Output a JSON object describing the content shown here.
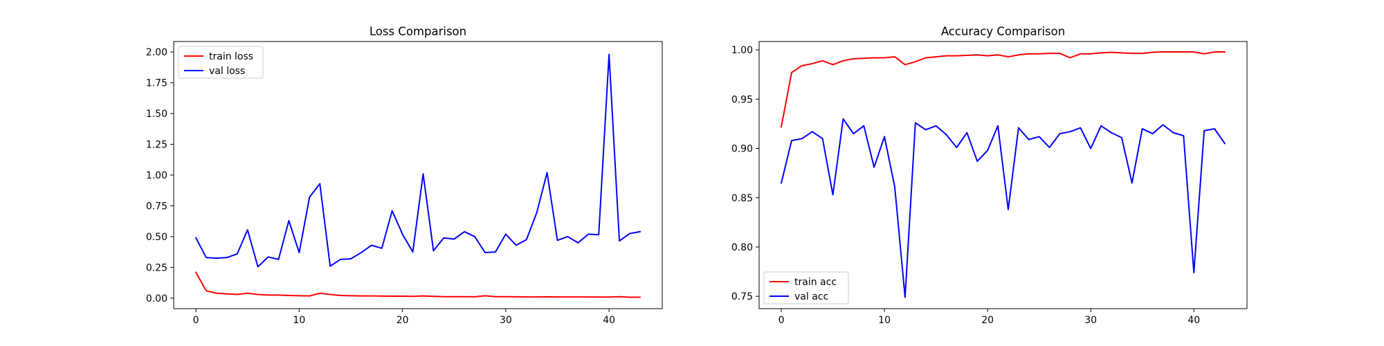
{
  "chart_data": [
    {
      "type": "line",
      "title": "Loss Comparison",
      "xlabel": "",
      "ylabel": "",
      "xlim": [
        -2.15,
        45.15
      ],
      "ylim": [
        -0.085,
        2.085
      ],
      "xticks": [
        0,
        10,
        20,
        30,
        40
      ],
      "yticks": [
        0.0,
        0.25,
        0.5,
        0.75,
        1.0,
        1.25,
        1.5,
        1.75,
        2.0
      ],
      "ytick_labels": [
        "0.00",
        "0.25",
        "0.50",
        "0.75",
        "1.00",
        "1.25",
        "1.50",
        "1.75",
        "2.00"
      ],
      "legend_loc": "upper left",
      "grid": false,
      "series": [
        {
          "name": "train loss",
          "color": "#ff0000",
          "x": [
            0,
            1,
            2,
            3,
            4,
            5,
            6,
            7,
            8,
            9,
            10,
            11,
            12,
            13,
            14,
            15,
            16,
            17,
            18,
            19,
            20,
            21,
            22,
            23,
            24,
            25,
            26,
            27,
            28,
            29,
            30,
            31,
            32,
            33,
            34,
            35,
            36,
            37,
            38,
            39,
            40,
            41,
            42,
            43
          ],
          "y": [
            0.21,
            0.06,
            0.04,
            0.035,
            0.03,
            0.04,
            0.03,
            0.025,
            0.025,
            0.022,
            0.02,
            0.018,
            0.04,
            0.03,
            0.022,
            0.02,
            0.018,
            0.018,
            0.017,
            0.016,
            0.016,
            0.015,
            0.018,
            0.015,
            0.012,
            0.012,
            0.012,
            0.011,
            0.02,
            0.012,
            0.012,
            0.011,
            0.01,
            0.01,
            0.011,
            0.01,
            0.01,
            0.01,
            0.01,
            0.009,
            0.009,
            0.012,
            0.008,
            0.008
          ]
        },
        {
          "name": "val loss",
          "color": "#0000ff",
          "x": [
            0,
            1,
            2,
            3,
            4,
            5,
            6,
            7,
            8,
            9,
            10,
            11,
            12,
            13,
            14,
            15,
            16,
            17,
            18,
            19,
            20,
            21,
            22,
            23,
            24,
            25,
            26,
            27,
            28,
            29,
            30,
            31,
            32,
            33,
            34,
            35,
            36,
            37,
            38,
            39,
            40,
            41,
            42,
            43
          ],
          "y": [
            0.49,
            0.33,
            0.325,
            0.33,
            0.36,
            0.555,
            0.255,
            0.335,
            0.315,
            0.63,
            0.37,
            0.82,
            0.93,
            0.26,
            0.315,
            0.32,
            0.37,
            0.43,
            0.405,
            0.71,
            0.52,
            0.375,
            1.01,
            0.385,
            0.49,
            0.48,
            0.54,
            0.5,
            0.37,
            0.375,
            0.52,
            0.43,
            0.475,
            0.695,
            1.02,
            0.47,
            0.5,
            0.45,
            0.52,
            0.515,
            1.98,
            0.465,
            0.525,
            0.54
          ]
        }
      ]
    },
    {
      "type": "line",
      "title": "Accuracy Comparison",
      "xlabel": "",
      "ylabel": "",
      "xlim": [
        -2.15,
        45.15
      ],
      "ylim": [
        0.7375,
        1.0085
      ],
      "xticks": [
        0,
        10,
        20,
        30,
        40
      ],
      "yticks": [
        0.75,
        0.8,
        0.85,
        0.9,
        0.95,
        1.0
      ],
      "ytick_labels": [
        "0.75",
        "0.80",
        "0.85",
        "0.90",
        "0.95",
        "1.00"
      ],
      "legend_loc": "lower left",
      "grid": false,
      "series": [
        {
          "name": "train acc",
          "color": "#ff0000",
          "x": [
            0,
            1,
            2,
            3,
            4,
            5,
            6,
            7,
            8,
            9,
            10,
            11,
            12,
            13,
            14,
            15,
            16,
            17,
            18,
            19,
            20,
            21,
            22,
            23,
            24,
            25,
            26,
            27,
            28,
            29,
            30,
            31,
            32,
            33,
            34,
            35,
            36,
            37,
            38,
            39,
            40,
            41,
            42,
            43
          ],
          "y": [
            0.922,
            0.977,
            0.984,
            0.986,
            0.989,
            0.985,
            0.989,
            0.991,
            0.9915,
            0.992,
            0.992,
            0.993,
            0.985,
            0.988,
            0.992,
            0.993,
            0.994,
            0.994,
            0.9945,
            0.995,
            0.994,
            0.995,
            0.993,
            0.995,
            0.996,
            0.996,
            0.9965,
            0.9965,
            0.992,
            0.996,
            0.996,
            0.997,
            0.9975,
            0.997,
            0.9965,
            0.9965,
            0.9975,
            0.998,
            0.998,
            0.998,
            0.998,
            0.996,
            0.998,
            0.998
          ]
        },
        {
          "name": "val acc",
          "color": "#0000ff",
          "x": [
            0,
            1,
            2,
            3,
            4,
            5,
            6,
            7,
            8,
            9,
            10,
            11,
            12,
            13,
            14,
            15,
            16,
            17,
            18,
            19,
            20,
            21,
            22,
            23,
            24,
            25,
            26,
            27,
            28,
            29,
            30,
            31,
            32,
            33,
            34,
            35,
            36,
            37,
            38,
            39,
            40,
            41,
            42,
            43
          ],
          "y": [
            0.865,
            0.908,
            0.91,
            0.917,
            0.91,
            0.853,
            0.93,
            0.915,
            0.923,
            0.881,
            0.912,
            0.861,
            0.749,
            0.926,
            0.919,
            0.923,
            0.914,
            0.901,
            0.916,
            0.887,
            0.898,
            0.923,
            0.838,
            0.921,
            0.909,
            0.912,
            0.901,
            0.915,
            0.917,
            0.921,
            0.9,
            0.923,
            0.916,
            0.911,
            0.865,
            0.92,
            0.915,
            0.924,
            0.916,
            0.913,
            0.774,
            0.918,
            0.92,
            0.905
          ]
        }
      ]
    }
  ]
}
